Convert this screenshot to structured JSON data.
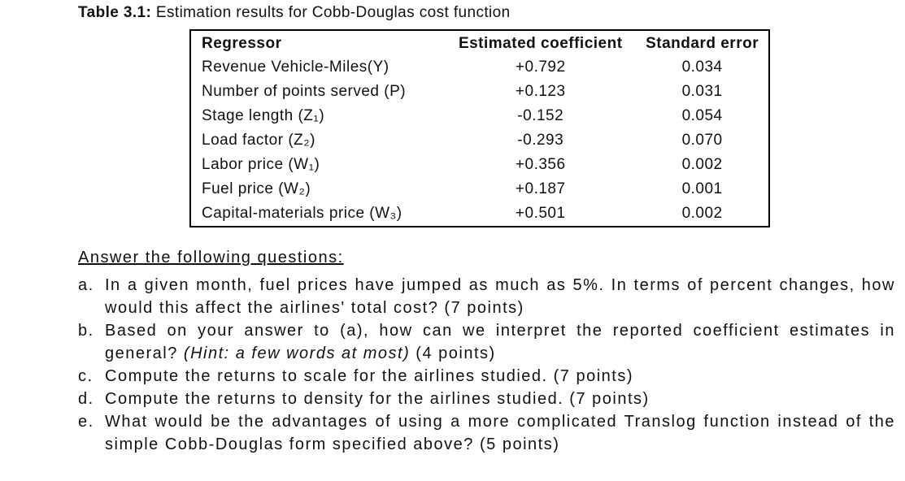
{
  "document": {
    "caption": {
      "label": "Table 3.1:",
      "text": " Estimation results for Cobb-Douglas cost function"
    },
    "table": {
      "columns": {
        "regressor": "Regressor",
        "coefficient": "Estimated coefficient",
        "std_error": "Standard error"
      },
      "rows": [
        {
          "regressor": "Revenue Vehicle-Miles(Y)",
          "coefficient": "+0.792",
          "std_error": "0.034"
        },
        {
          "regressor": "Number of points served (P)",
          "coefficient": "+0.123",
          "std_error": "0.031"
        },
        {
          "regressor": "Stage length (Z₁)",
          "coefficient": "-0.152",
          "std_error": "0.054"
        },
        {
          "regressor": "Load factor (Z₂)",
          "coefficient": "-0.293",
          "std_error": "0.070"
        },
        {
          "regressor": "Labor price (W₁)",
          "coefficient": "+0.356",
          "std_error": "0.002"
        },
        {
          "regressor": "Fuel price (W₂)",
          "coefficient": "+0.187",
          "std_error": "0.001"
        },
        {
          "regressor": "Capital-materials price (W₃)",
          "coefficient": "+0.501",
          "std_error": "0.002"
        }
      ]
    },
    "questions": {
      "heading": "Answer the following questions:",
      "items": [
        {
          "marker": "a.",
          "text": "In a given month, fuel prices have jumped as much as 5%. In terms of percent changes, how would this affect the airlines' total cost? (7 points)"
        },
        {
          "marker": "b.",
          "text_before_hint": "Based on your answer to (a), how can we interpret the reported coefficient estimates in general? ",
          "hint": "(Hint: a few words at most)",
          "text_after_hint": " (4 points)"
        },
        {
          "marker": "c.",
          "text": "Compute the returns to scale for the airlines studied. (7 points)"
        },
        {
          "marker": "d.",
          "text": "Compute the returns to density for the airlines studied. (7 points)"
        },
        {
          "marker": "e.",
          "text": "What would be the advantages of using a more complicated Translog function instead of the simple Cobb-Douglas form specified above? (5 points)"
        }
      ]
    },
    "colors": {
      "text": "#111111",
      "table_border": "#000000",
      "background": "#ffffff"
    }
  }
}
